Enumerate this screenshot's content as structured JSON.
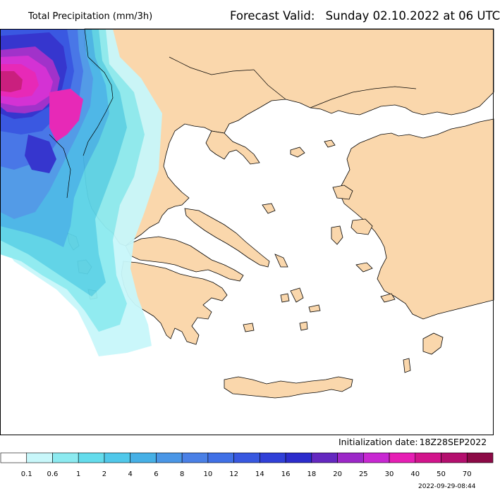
{
  "header": {
    "title": "Total Precipitation (mm/3h)",
    "forecast_label": "Forecast Valid:",
    "forecast_value": "Sunday 02.10.2022 at 06 UTC"
  },
  "footer": {
    "init_label": "Initialization date:",
    "init_value": "18Z28SEP2022",
    "timestamp": "2022-09-29-08:44"
  },
  "colors": {
    "land": "#fad7ac",
    "sea": "#ffffff",
    "border": "#000000",
    "precip": [
      "#c8f7fa",
      "#8ceaf0",
      "#5ad2e6",
      "#46b4e6",
      "#4a96e6",
      "#4070e6",
      "#3050e0",
      "#2c2ccc",
      "#6428c0",
      "#9c28c8",
      "#d228d2",
      "#e61eb4",
      "#c81478",
      "#a00a5a"
    ]
  },
  "legend": {
    "ticks": [
      "0.1",
      "0.6",
      "1",
      "2",
      "4",
      "6",
      "8",
      "10",
      "12",
      "14",
      "16",
      "18",
      "20",
      "25",
      "30",
      "40",
      "50",
      "70"
    ],
    "colors": [
      "#ffffff",
      "#c8f7fa",
      "#8ceaf0",
      "#64dcec",
      "#50c8ea",
      "#46b0e6",
      "#4a96e6",
      "#4a80e6",
      "#4070e6",
      "#3858e0",
      "#3040d8",
      "#2c2ccc",
      "#6428c0",
      "#9c28c8",
      "#c828d2",
      "#e61eb4",
      "#d2148c",
      "#b40f6e",
      "#8c0a46"
    ]
  }
}
